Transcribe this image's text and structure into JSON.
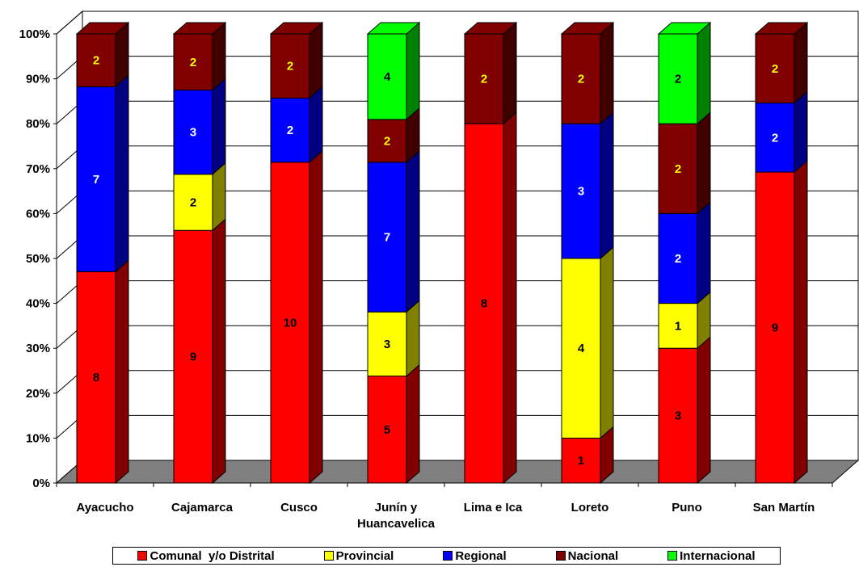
{
  "chart_data": {
    "type": "bar",
    "stacked": true,
    "percent_stacked": true,
    "three_d": true,
    "categories": [
      "Ayacucho",
      "Cajamarca",
      "Cusco",
      "Junín y\nHuancavelica",
      "Lima e Ica",
      "Loreto",
      "Puno",
      "San Martín"
    ],
    "series": [
      {
        "name": "Comunal  y/o Distrital",
        "color": "#ff0000",
        "side": "#800000",
        "label_color": "#000000",
        "values": [
          8,
          9,
          10,
          5,
          8,
          1,
          3,
          9
        ]
      },
      {
        "name": "Provincial",
        "color": "#ffff00",
        "side": "#808000",
        "label_color": "#000000",
        "values": [
          0,
          2,
          0,
          3,
          0,
          4,
          1,
          0
        ]
      },
      {
        "name": "Regional",
        "color": "#0000ff",
        "side": "#000080",
        "label_color": "#ffffff",
        "values": [
          7,
          3,
          2,
          7,
          0,
          3,
          2,
          2
        ]
      },
      {
        "name": "Nacional",
        "color": "#800000",
        "side": "#400000",
        "label_color": "#ffff00",
        "values": [
          2,
          2,
          2,
          2,
          2,
          2,
          2,
          2
        ]
      },
      {
        "name": "Internacional",
        "color": "#00ff00",
        "side": "#008000",
        "label_color": "#000000",
        "values": [
          0,
          0,
          0,
          4,
          0,
          0,
          2,
          0
        ]
      }
    ],
    "y_ticks": [
      "0%",
      "10%",
      "20%",
      "30%",
      "40%",
      "50%",
      "60%",
      "70%",
      "80%",
      "90%",
      "100%"
    ],
    "ylim": [
      0,
      100
    ],
    "grid": true,
    "legend_position": "bottom"
  }
}
